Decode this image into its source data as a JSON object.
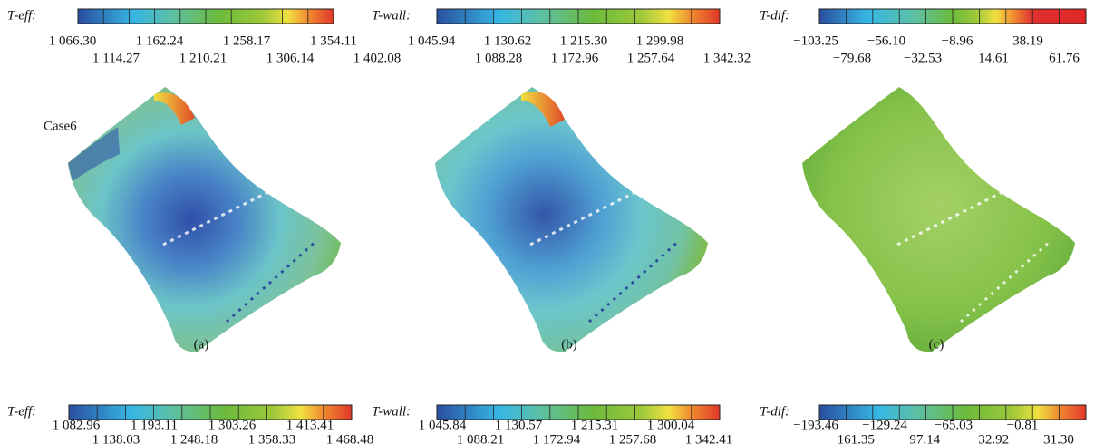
{
  "figure": {
    "top_colorbars": [
      {
        "label": "T-eff:",
        "ticks": [
          "1 066.30",
          "1 114.27",
          "1 162.24",
          "1 210.21",
          "1 258.17",
          "1 306.14",
          "1 354.11",
          "1 402.08"
        ]
      },
      {
        "label": "T-wall:",
        "ticks": [
          "1 045.94",
          "1 088.28",
          "1 130.62",
          "1 172.96",
          "1 215.30",
          "1 257.64",
          "1 299.98",
          "1 342.32"
        ]
      },
      {
        "label": "T-dif:",
        "ticks": [
          "−103.25",
          "−79.68",
          "−56.10",
          "−32.53",
          "−8.96",
          "14.61",
          "38.19",
          "61.76"
        ]
      }
    ],
    "bottom_colorbars": [
      {
        "label": "T-eff:",
        "ticks": [
          "1 082.96",
          "1 138.03",
          "1 193.11",
          "1 248.18",
          "1 303.26",
          "1 358.33",
          "1 413.41",
          "1 468.48"
        ]
      },
      {
        "label": "T-wall:",
        "ticks": [
          "1 045.84",
          "1 088.21",
          "1 130.57",
          "1 172.94",
          "1 215.31",
          "1 257.68",
          "1 300.04",
          "1 342.41"
        ]
      },
      {
        "label": "T-dif:",
        "ticks": [
          "−193.46",
          "−161.35",
          "−129.24",
          "−97.14",
          "−65.03",
          "−32.92",
          "−0.81",
          "31.30"
        ]
      }
    ],
    "panels": [
      {
        "label": "(a)",
        "case": "Case6"
      },
      {
        "label": "(b)"
      },
      {
        "label": "(c)"
      }
    ]
  }
}
